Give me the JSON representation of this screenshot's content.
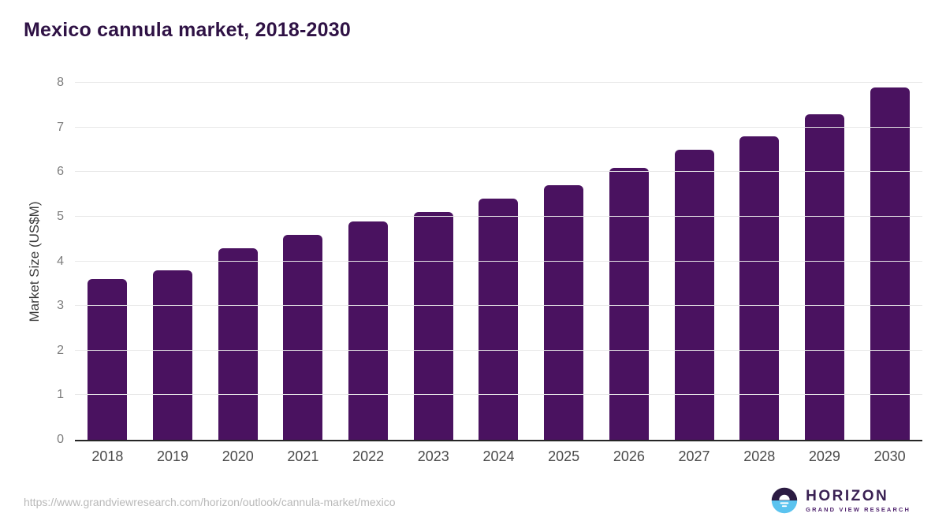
{
  "title": "Mexico cannula market, 2018-2030",
  "chart_data": {
    "type": "bar",
    "title": "Mexico cannula market, 2018-2030",
    "categories": [
      "2018",
      "2019",
      "2020",
      "2021",
      "2022",
      "2023",
      "2024",
      "2025",
      "2026",
      "2027",
      "2028",
      "2029",
      "2030"
    ],
    "values": [
      3.6,
      3.8,
      4.3,
      4.6,
      4.9,
      5.1,
      5.4,
      5.7,
      6.1,
      6.5,
      6.8,
      7.3,
      7.9
    ],
    "xlabel": "",
    "ylabel": "Market Size (US$M)",
    "ylim": [
      0,
      8
    ],
    "yticks": [
      0,
      1,
      2,
      3,
      4,
      5,
      6,
      7,
      8
    ],
    "grid": true,
    "legend": "none",
    "bar_color": "#4A1260"
  },
  "colors": {
    "title": "#2F1245",
    "bar": "#4A1260",
    "gridline": "#e8e8e8",
    "axis_line": "#262626",
    "logo_top": "#2B1B42",
    "logo_bottom": "#5BC3EF"
  },
  "footer": {
    "source_url": "https://www.grandviewresearch.com/horizon/outlook/cannula-market/mexico",
    "logo": {
      "name": "HORIZON",
      "subtitle": "GRAND VIEW RESEARCH"
    }
  }
}
